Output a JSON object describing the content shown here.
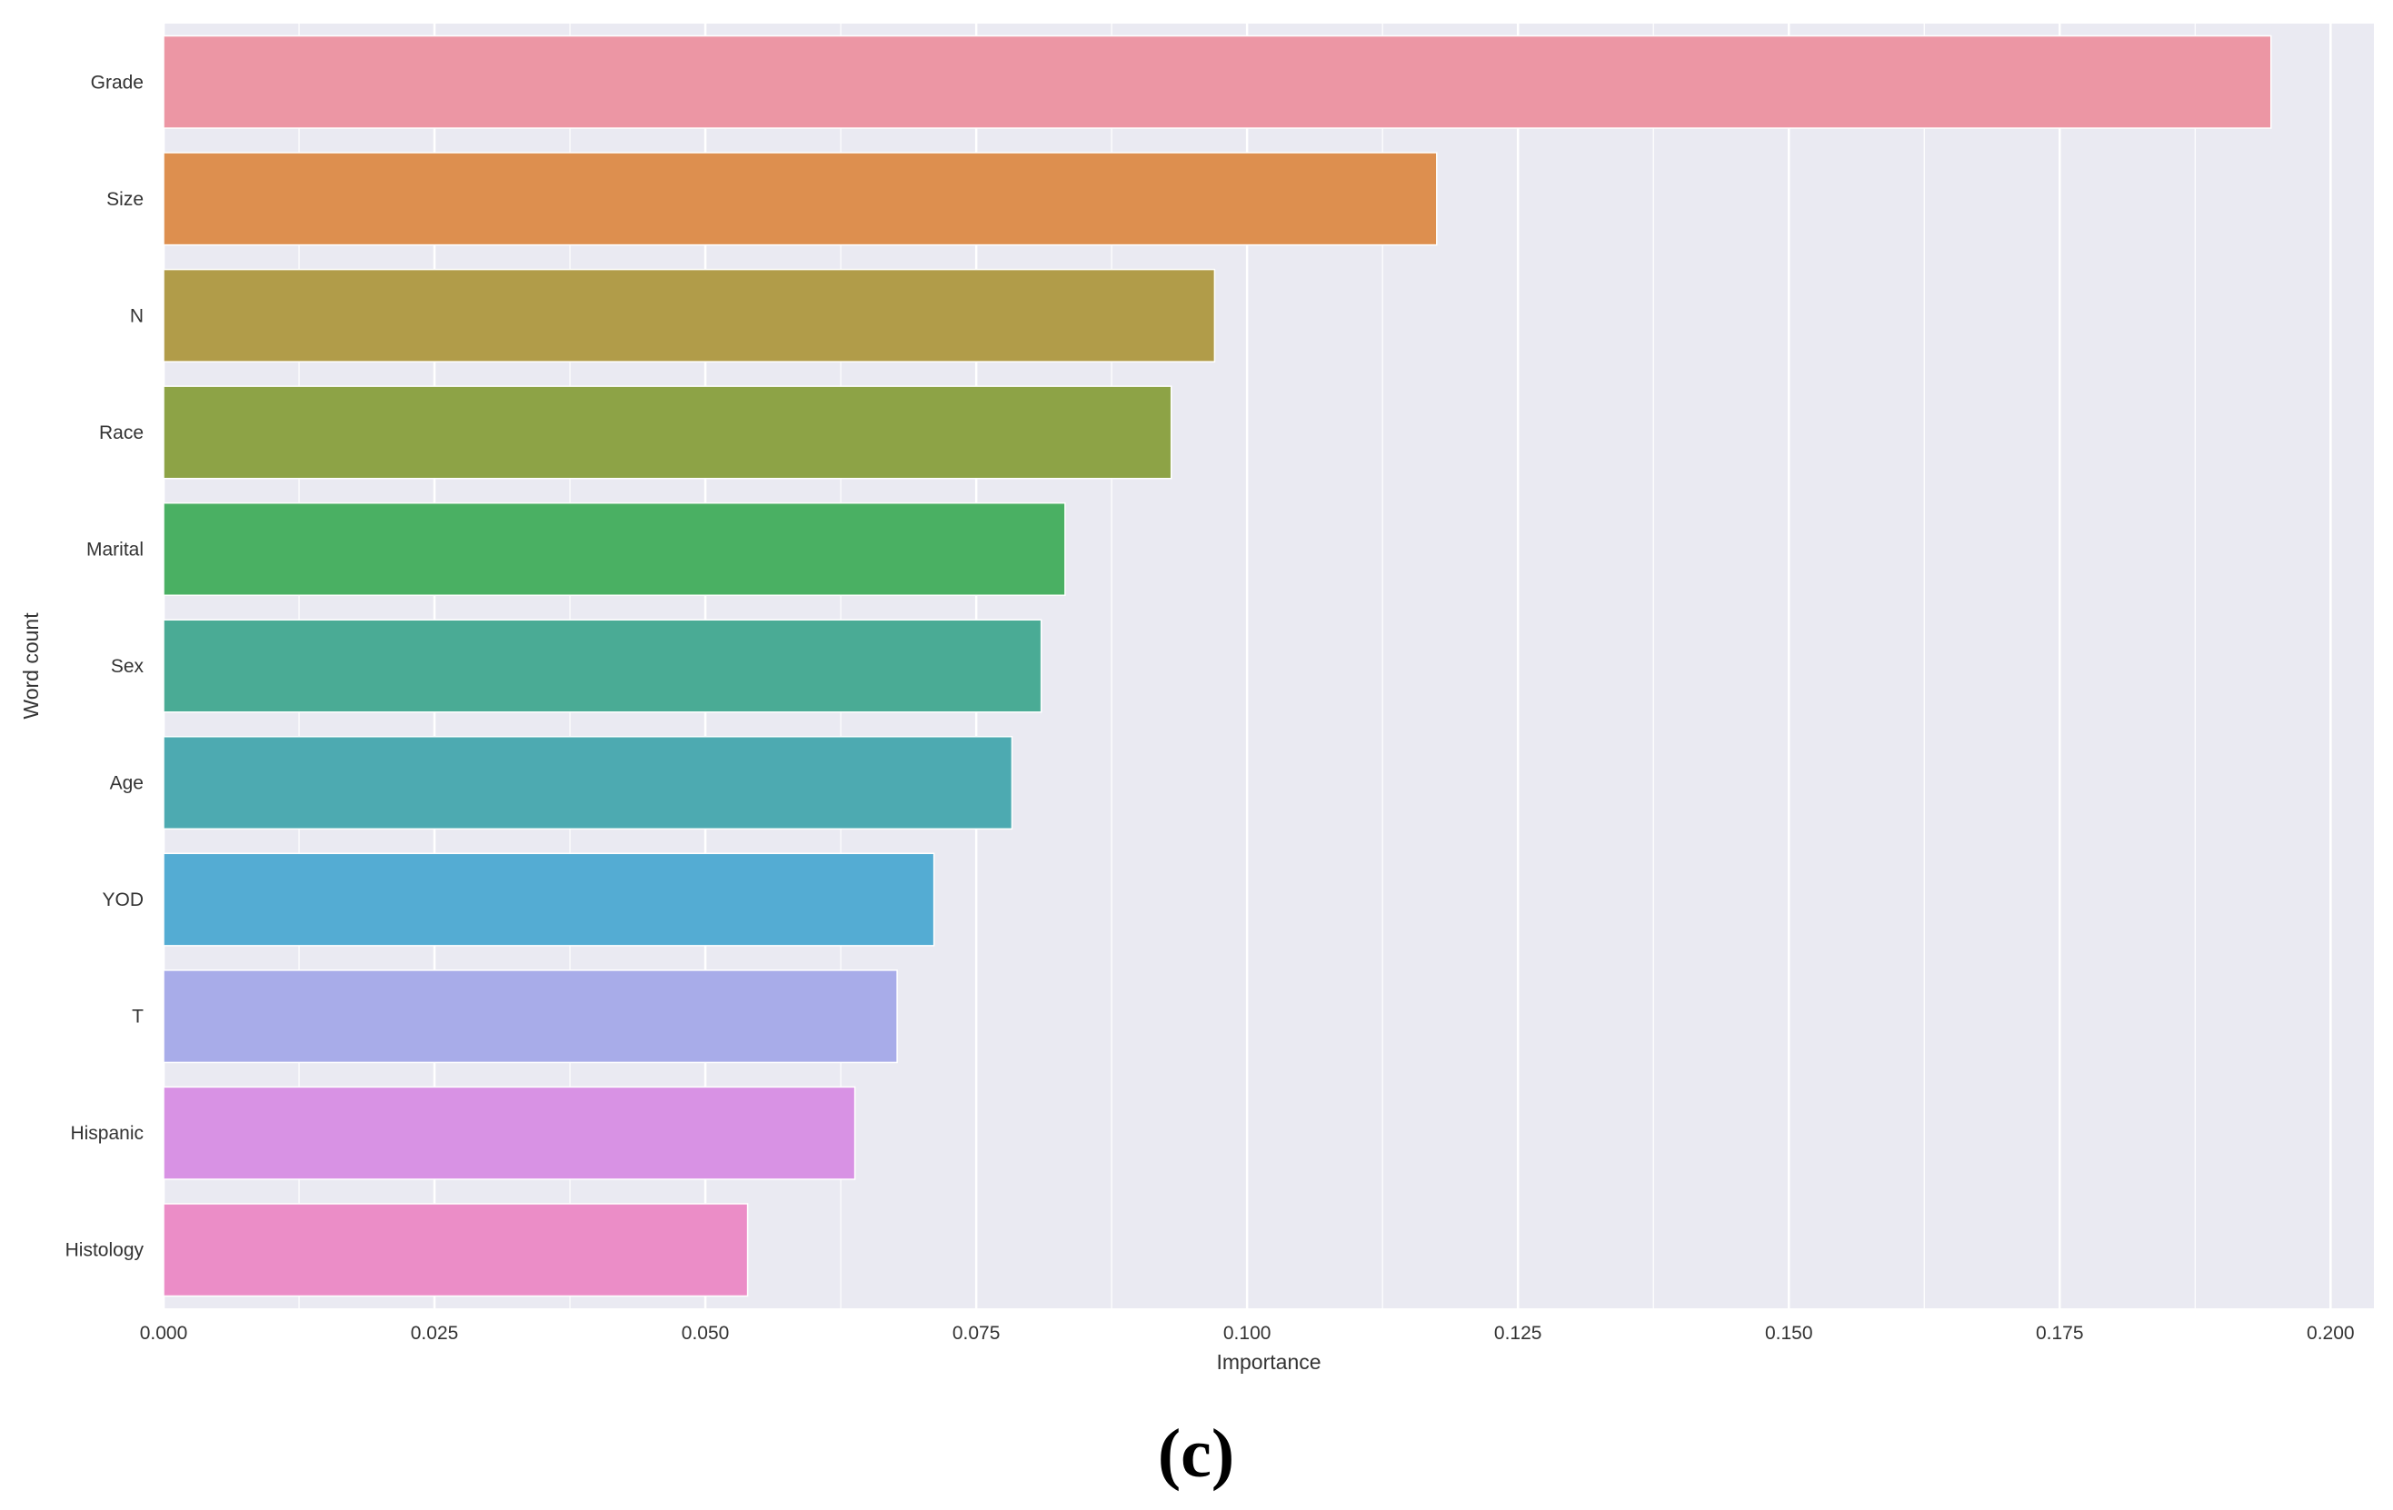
{
  "chart_data": {
    "type": "bar",
    "orientation": "horizontal",
    "title": "",
    "xlabel": "Importance",
    "ylabel": "Word count",
    "xlim": [
      0,
      0.204
    ],
    "xticks": [
      0.0,
      0.025,
      0.05,
      0.075,
      0.1,
      0.125,
      0.15,
      0.175,
      0.2
    ],
    "xtick_labels": [
      "0.000",
      "0.025",
      "0.050",
      "0.075",
      "0.100",
      "0.125",
      "0.150",
      "0.175",
      "0.200"
    ],
    "categories": [
      "Grade",
      "Size",
      "N",
      "Race",
      "Marital",
      "Sex",
      "Age",
      "YOD",
      "T",
      "Hispanic",
      "Histology"
    ],
    "values": [
      0.1945,
      0.1175,
      0.097,
      0.093,
      0.0832,
      0.081,
      0.0783,
      0.0711,
      0.0677,
      0.0638,
      0.0539
    ],
    "colors": [
      "#EC96A4",
      "#DD8F4F",
      "#B19C49",
      "#8DA346",
      "#4AB063",
      "#4AAB95",
      "#4DAAB1",
      "#54ACD3",
      "#A8ACE9",
      "#D892E4",
      "#EB8DC7"
    ],
    "grid": true,
    "background": "#EAEAF2",
    "gridline_color": "#FFFFFF",
    "legend": "none"
  },
  "panel_label": "(c)"
}
